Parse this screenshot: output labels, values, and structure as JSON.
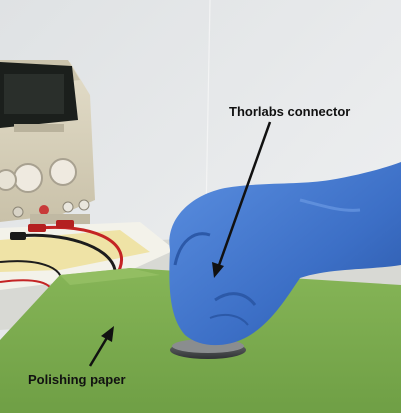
{
  "labels": {
    "connector": "Thorlabs connector",
    "paper": "Polishing paper"
  },
  "colors": {
    "background_wall": "#e4e6e7",
    "table_paper": "#7fae52",
    "glove": "#3f73c9",
    "power_supply_body": "#d9d2bd",
    "display": "#1b1f1c",
    "arrow": "#111111"
  }
}
